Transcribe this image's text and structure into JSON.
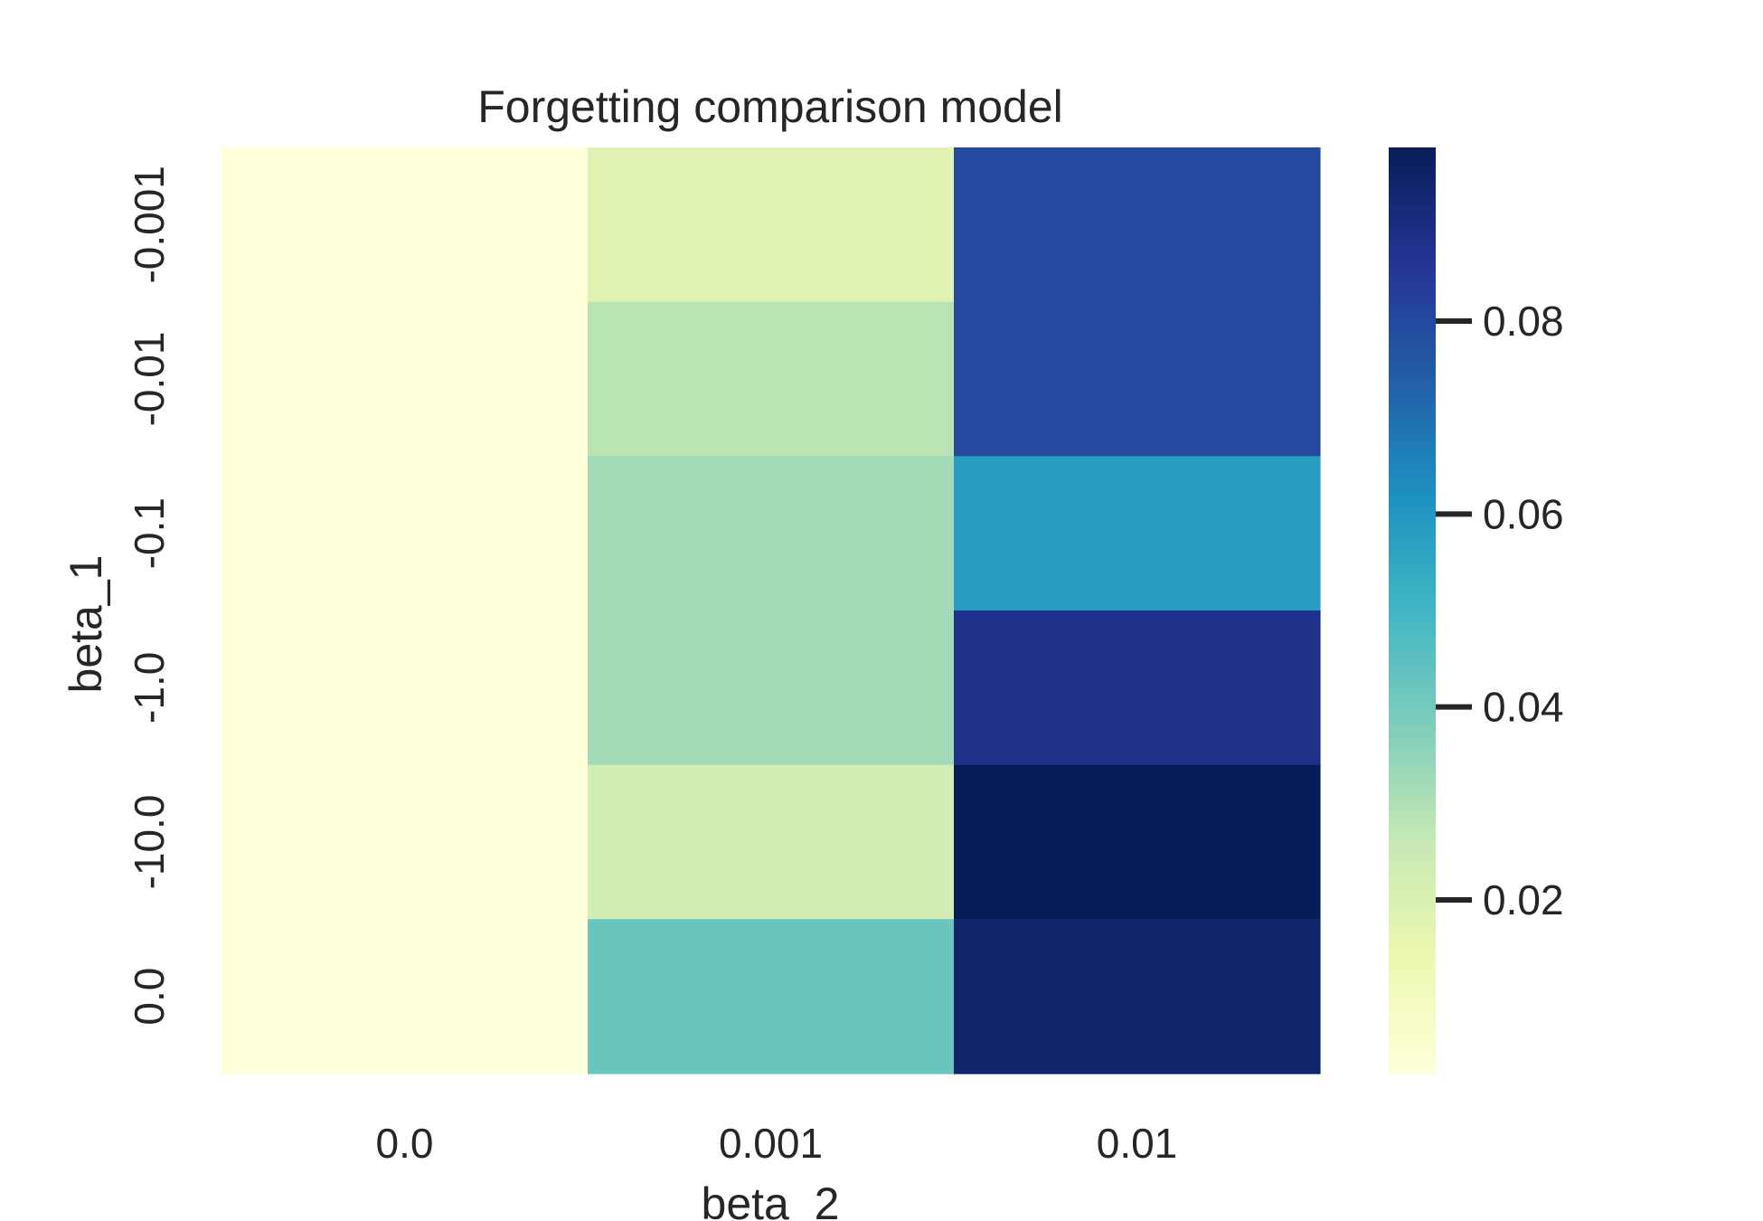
{
  "chart_data": {
    "type": "heatmap",
    "title": "Forgetting comparison model",
    "xlabel": "beta_2",
    "ylabel": "beta_1",
    "x_categories": [
      "0.0",
      "0.001",
      "0.01"
    ],
    "y_categories": [
      "-0.001",
      "-0.01",
      "-0.1",
      "-1.0",
      "-10.0",
      "0.0"
    ],
    "values": [
      [
        0.002,
        0.018,
        0.08
      ],
      [
        0.002,
        0.028,
        0.08
      ],
      [
        0.002,
        0.032,
        0.058
      ],
      [
        0.002,
        0.032,
        0.088
      ],
      [
        0.002,
        0.023,
        0.098
      ],
      [
        0.002,
        0.042,
        0.094
      ]
    ],
    "colormap": "YlGnBu",
    "colorbar": {
      "vmin": 0.002,
      "vmax": 0.098,
      "ticks": [
        "0.02",
        "0.04",
        "0.06",
        "0.08"
      ]
    },
    "grid": false
  }
}
